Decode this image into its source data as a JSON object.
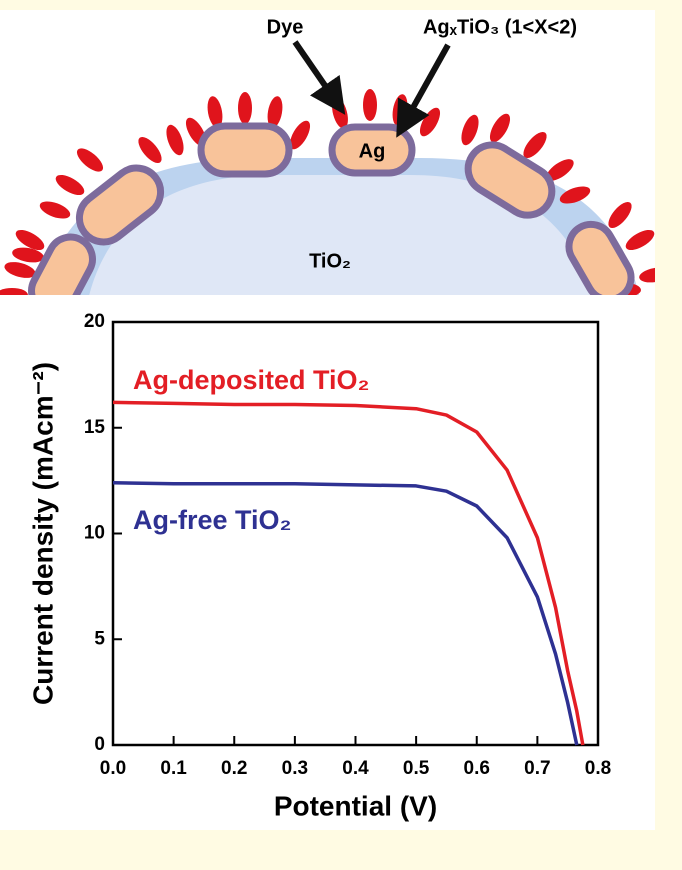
{
  "diagram": {
    "labels": [
      "Dye",
      "AgₓTiO₃ (1<X<2)",
      "Ag",
      "TiO₂"
    ]
  },
  "chart_data": {
    "type": "line",
    "xlabel": "Potential (V)",
    "ylabel": "Current density (mAcm⁻²)",
    "x": [
      0,
      0.1,
      0.2,
      0.3,
      0.4,
      0.5,
      0.55,
      0.6,
      0.65,
      0.7,
      0.73,
      0.75,
      0.765,
      0.775
    ],
    "series": [
      {
        "name": "Ag-deposited TiO₂",
        "color": "#e31e25",
        "values": [
          16.2,
          16.15,
          16.1,
          16.1,
          16.05,
          15.9,
          15.6,
          14.8,
          13.0,
          9.8,
          6.5,
          3.5,
          1.6,
          0
        ]
      },
      {
        "name": "Ag-free TiO₂",
        "color": "#2e3192",
        "values": [
          12.4,
          12.35,
          12.35,
          12.35,
          12.3,
          12.25,
          12.0,
          11.3,
          9.8,
          7.0,
          4.3,
          2.0,
          0,
          null
        ]
      }
    ],
    "xlim": [
      0,
      0.8
    ],
    "xticks": [
      {
        "value": 0,
        "label": "0.0"
      },
      0.1,
      0.2,
      0.3,
      0.4,
      0.5,
      0.6,
      0.7,
      0.8
    ],
    "ylim": [
      0,
      20
    ],
    "yticks": [
      0,
      5,
      10,
      15,
      20
    ],
    "grid": false
  }
}
